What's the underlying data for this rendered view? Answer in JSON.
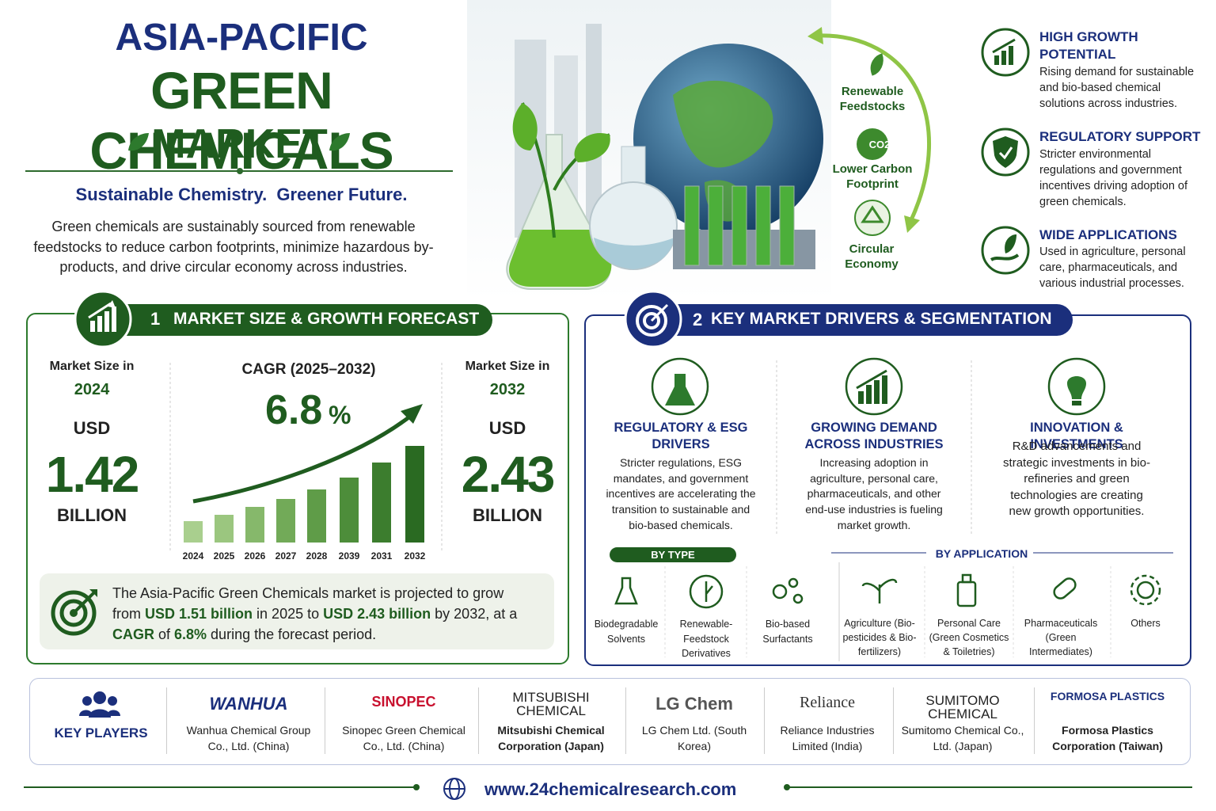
{
  "header": {
    "title_line1": "ASIA-PACIFIC",
    "title_line2": "GREEN CHEMICALS",
    "title_line3": "MARKET",
    "tagline": "Sustainable Chemistry.  Greener Future.",
    "description": "Green chemicals are sustainably sourced from renewable feedstocks to reduce carbon footprints, minimize hazardous by-products, and drive circular economy across industries."
  },
  "hero_labels": [
    "Renewable Feedstocks",
    "Lower Carbon Footprint",
    "Circular Economy"
  ],
  "hero_icon_text": "CO2",
  "highlights": [
    {
      "title": "HIGH GROWTH POTENTIAL",
      "text": "Rising demand for sustainable and bio-based chemical solutions across industries."
    },
    {
      "title": "REGULATORY SUPPORT",
      "text": "Stricter environmental regulations and government incentives driving adoption of green chemicals."
    },
    {
      "title": "WIDE APPLICATIONS",
      "text": "Used in agriculture, personal care, pharmaceuticals, and various industrial processes."
    }
  ],
  "section1": {
    "number": "1",
    "title": "MARKET SIZE & GROWTH FORECAST",
    "start": {
      "label": "Market Size in",
      "year": "2024",
      "currency": "USD",
      "value": "1.42",
      "unit": "BILLION"
    },
    "cagr": {
      "label": "CAGR (2025–2032)",
      "value": "6.8",
      "unit": "%"
    },
    "years": [
      "2024",
      "2025",
      "2026",
      "2027",
      "2028",
      "2039",
      "2031",
      "2032"
    ],
    "end": {
      "label": "Market Size in",
      "year": "2032",
      "currency": "USD",
      "value": "2.43",
      "unit": "BILLION"
    },
    "summary": [
      "The Asia-Pacific Green Chemicals market is projected to grow from ",
      "USD 1.51 billion",
      " in 2025 to ",
      "USD 2.43 billion",
      " by 2032, at a ",
      "CAGR",
      " of ",
      "6.8%",
      " during the forecast period."
    ]
  },
  "section2": {
    "number": "2",
    "title": "KEY MARKET DRIVERS & SEGMENTATION",
    "drivers": [
      {
        "title": "REGULATORY & ESG DRIVERS",
        "text": "Stricter regulations, ESG mandates, and government incentives are accelerating the transition to sustainable and bio-based chemicals."
      },
      {
        "title": "GROWING DEMAND ACROSS INDUSTRIES",
        "text": "Increasing adoption in agriculture, personal care, pharmaceuticals, and other end-use industries is fueling market growth."
      },
      {
        "title": "INNOVATION & INVESTMENTS",
        "text": "R&D advancements and strategic investments in bio-refineries and green technologies are creating new growth opportunities."
      }
    ],
    "by_type_label": "BY TYPE",
    "types": [
      "Biodegradable Solvents",
      "Renewable-Feedstock Derivatives",
      "Bio-based Surfactants"
    ],
    "by_application_label": "BY APPLICATION",
    "applications": [
      "Agriculture (Bio-pesticides & Bio-fertilizers)",
      "Personal Care (Green Cosmetics & Toiletries)",
      "Pharmaceuticals (Green Intermediates)",
      "Others"
    ]
  },
  "key_players": {
    "label": "KEY PLAYERS",
    "players": [
      {
        "logo": "WANHUA",
        "caption": "Wanhua Chemical Group Co., Ltd. (China)"
      },
      {
        "logo": "SINOPEC",
        "caption": "Sinopec Green Chemical Co., Ltd. (China)"
      },
      {
        "logo": "MITSUBISHI CHEMICAL",
        "caption": "Mitsubishi Chemical Corporation (Japan)"
      },
      {
        "logo": "LG Chem",
        "caption": "LG Chem Ltd. (South Korea)"
      },
      {
        "logo": "Reliance",
        "caption": "Reliance Industries Limited (India)"
      },
      {
        "logo": "SUMITOMO CHEMICAL",
        "caption": "Sumitomo Chemical Co., Ltd. (Japan)"
      },
      {
        "logo": "FORMOSA PLASTICS",
        "caption": "Formosa Plastics Corporation (Taiwan)"
      }
    ]
  },
  "footer": {
    "url": "www.24chemicalresearch.com"
  }
}
